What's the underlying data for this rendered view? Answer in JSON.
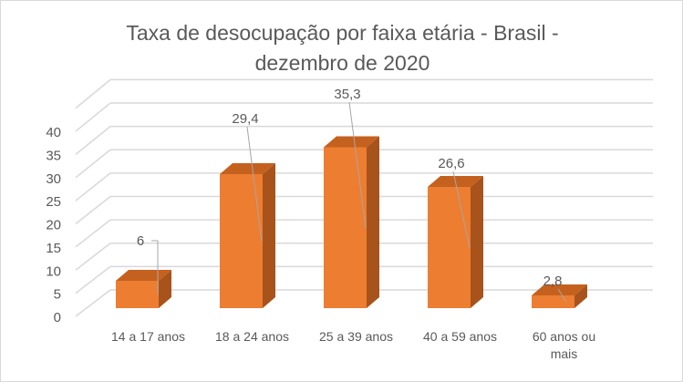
{
  "chart_data": {
    "type": "bar",
    "title_lines": [
      "Taxa de desocupação por faixa etária - Brasil -",
      "dezembro de 2020"
    ],
    "categories": [
      "14 a 17 anos",
      "18 a 24 anos",
      "25 a 39 anos",
      "40 a 59 anos",
      "60 anos ou mais"
    ],
    "category_lines": [
      [
        "14 a 17 anos"
      ],
      [
        "18 a 24 anos"
      ],
      [
        "25 a 39 anos"
      ],
      [
        "40 a 59 anos"
      ],
      [
        "60 anos ou",
        "mais"
      ]
    ],
    "values": [
      6,
      29.4,
      35.3,
      26.6,
      2.8
    ],
    "data_labels": [
      "6",
      "29,4",
      "35,3",
      "26,6",
      "2,8"
    ],
    "yticks": [
      "0",
      "5",
      "10",
      "15",
      "20",
      "25",
      "30",
      "35",
      "40"
    ],
    "ylim": [
      0,
      40
    ],
    "xlabel": "",
    "ylabel": "",
    "grid": true,
    "style": "3d-column",
    "colors": {
      "bar_front": "#ed7d31",
      "bar_side": "#a9531c",
      "bar_top": "#c4611f",
      "grid": "#d9d9d9",
      "text": "#595959"
    }
  }
}
